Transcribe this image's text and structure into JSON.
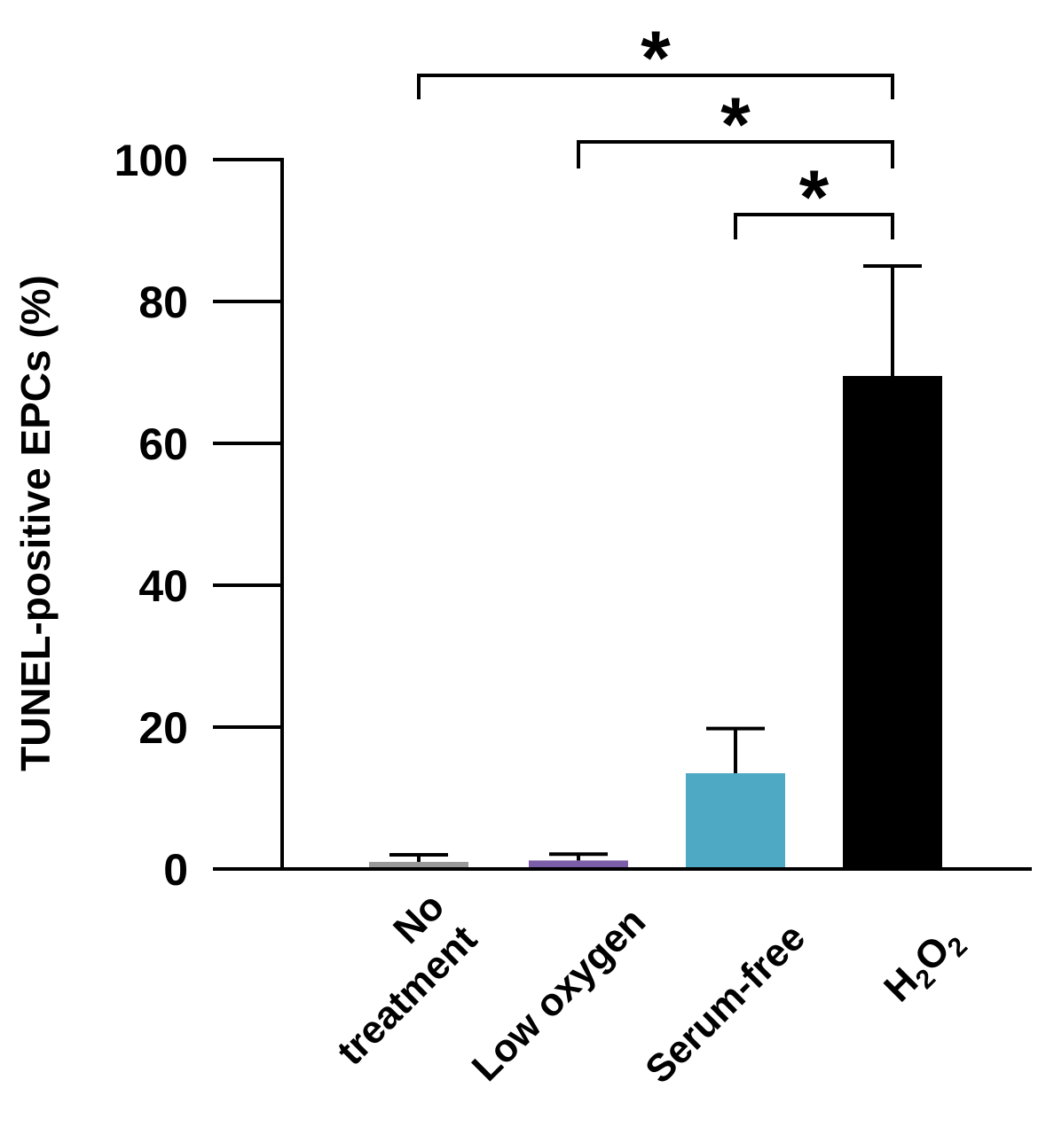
{
  "chart_data": {
    "type": "bar",
    "ylabel": "TUNEL-positive EPCs (%)",
    "xlabel": "",
    "ylim": [
      0,
      100
    ],
    "yticks": [
      0,
      20,
      40,
      60,
      80,
      100
    ],
    "grid": false,
    "legend": "none",
    "categories": [
      {
        "label": "No treatment",
        "lines": [
          "No",
          "treatment"
        ]
      },
      {
        "label": "Low oxygen",
        "lines": [
          "Low oxygen"
        ]
      },
      {
        "label": "Serum-free",
        "lines": [
          "Serum-free"
        ]
      },
      {
        "label": "H2O2",
        "lines": [
          "H",
          "2",
          "O",
          "2"
        ]
      }
    ],
    "values": [
      1,
      1.2,
      13.5,
      69.5
    ],
    "errors": [
      1,
      0.9,
      6.3,
      15.5
    ],
    "colors": [
      "#999999",
      "#7b5ea7",
      "#4eaac4",
      "#000000"
    ],
    "significance": [
      {
        "from": 0,
        "to": 3,
        "label": "*"
      },
      {
        "from": 1,
        "to": 3,
        "label": "*"
      },
      {
        "from": 2,
        "to": 3,
        "label": "*"
      }
    ]
  }
}
